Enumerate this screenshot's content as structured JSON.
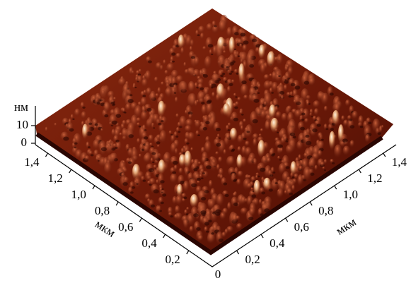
{
  "z_axis": {
    "unit": "нм",
    "ticks": [
      "10",
      "0"
    ]
  },
  "origin": "0",
  "left_axis": {
    "unit": "мкм",
    "ticks": [
      "0,2",
      "0,4",
      "0,6",
      "0,8",
      "1,0",
      "1,2",
      "1,4"
    ]
  },
  "right_axis": {
    "unit": "мкм",
    "ticks": [
      "0,2",
      "0,4",
      "0,6",
      "0,8",
      "1,0",
      "1,2",
      "1,4"
    ]
  }
}
